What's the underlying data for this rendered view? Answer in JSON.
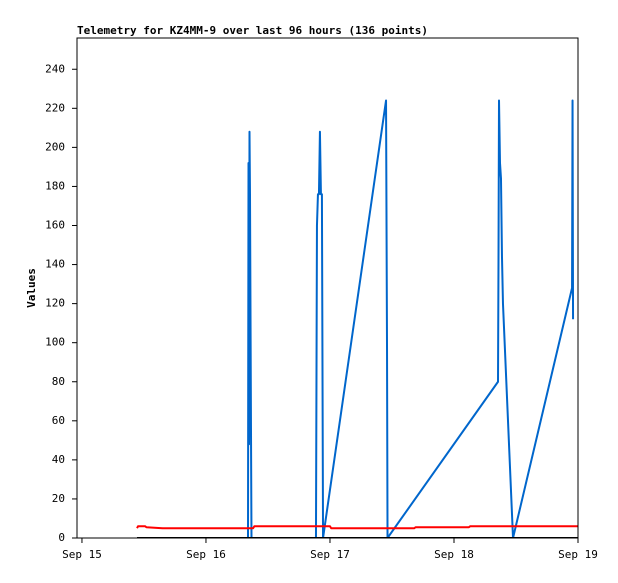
{
  "chart_data": {
    "type": "line",
    "title": "Telemetry for KZ4MM-9 over last 96 hours (136 points)",
    "y_label": "Values",
    "xlim": [
      14.96,
      19.0
    ],
    "xticks": [
      {
        "value": 15,
        "label": "Sep 15"
      },
      {
        "value": 16,
        "label": "Sep 16"
      },
      {
        "value": 17,
        "label": "Sep 17"
      },
      {
        "value": 18,
        "label": "Sep 18"
      },
      {
        "value": 19,
        "label": "Sep 19"
      }
    ],
    "ylim": [
      0,
      256
    ],
    "yticks": [
      0,
      20,
      40,
      60,
      80,
      100,
      120,
      140,
      160,
      180,
      200,
      220,
      240
    ],
    "grid": false,
    "series": [
      {
        "color": "#0066cc",
        "x": [
          16.339,
          16.343,
          16.347,
          16.351,
          16.355,
          16.363,
          16.367,
          16.887,
          16.895,
          16.903,
          16.911,
          16.919,
          16.927,
          16.935,
          16.944,
          17.452,
          17.46,
          17.464,
          18.355,
          18.359,
          18.363,
          18.371,
          18.379,
          18.387,
          18.395,
          18.476,
          18.952,
          18.956,
          18.96
        ],
        "values": [
          0,
          192,
          48,
          208,
          176,
          56,
          0,
          0,
          160,
          176,
          176,
          208,
          176,
          176,
          0,
          224,
          96,
          0,
          80,
          144,
          224,
          192,
          184,
          144,
          120,
          0,
          128,
          224,
          112
        ]
      },
      {
        "color": "#ff0000",
        "x": [
          15.444,
          15.452,
          15.51,
          15.52,
          15.65,
          16.38,
          16.39,
          17.0,
          17.01,
          17.68,
          17.69,
          18.12,
          18.13,
          19.0
        ],
        "values": [
          5,
          6,
          6,
          5.5,
          5,
          5,
          6,
          6,
          5,
          5,
          5.5,
          5.5,
          6,
          6
        ]
      },
      {
        "color": "#000000",
        "x": [
          15.444,
          19.0
        ],
        "values": [
          0,
          0
        ]
      }
    ]
  }
}
